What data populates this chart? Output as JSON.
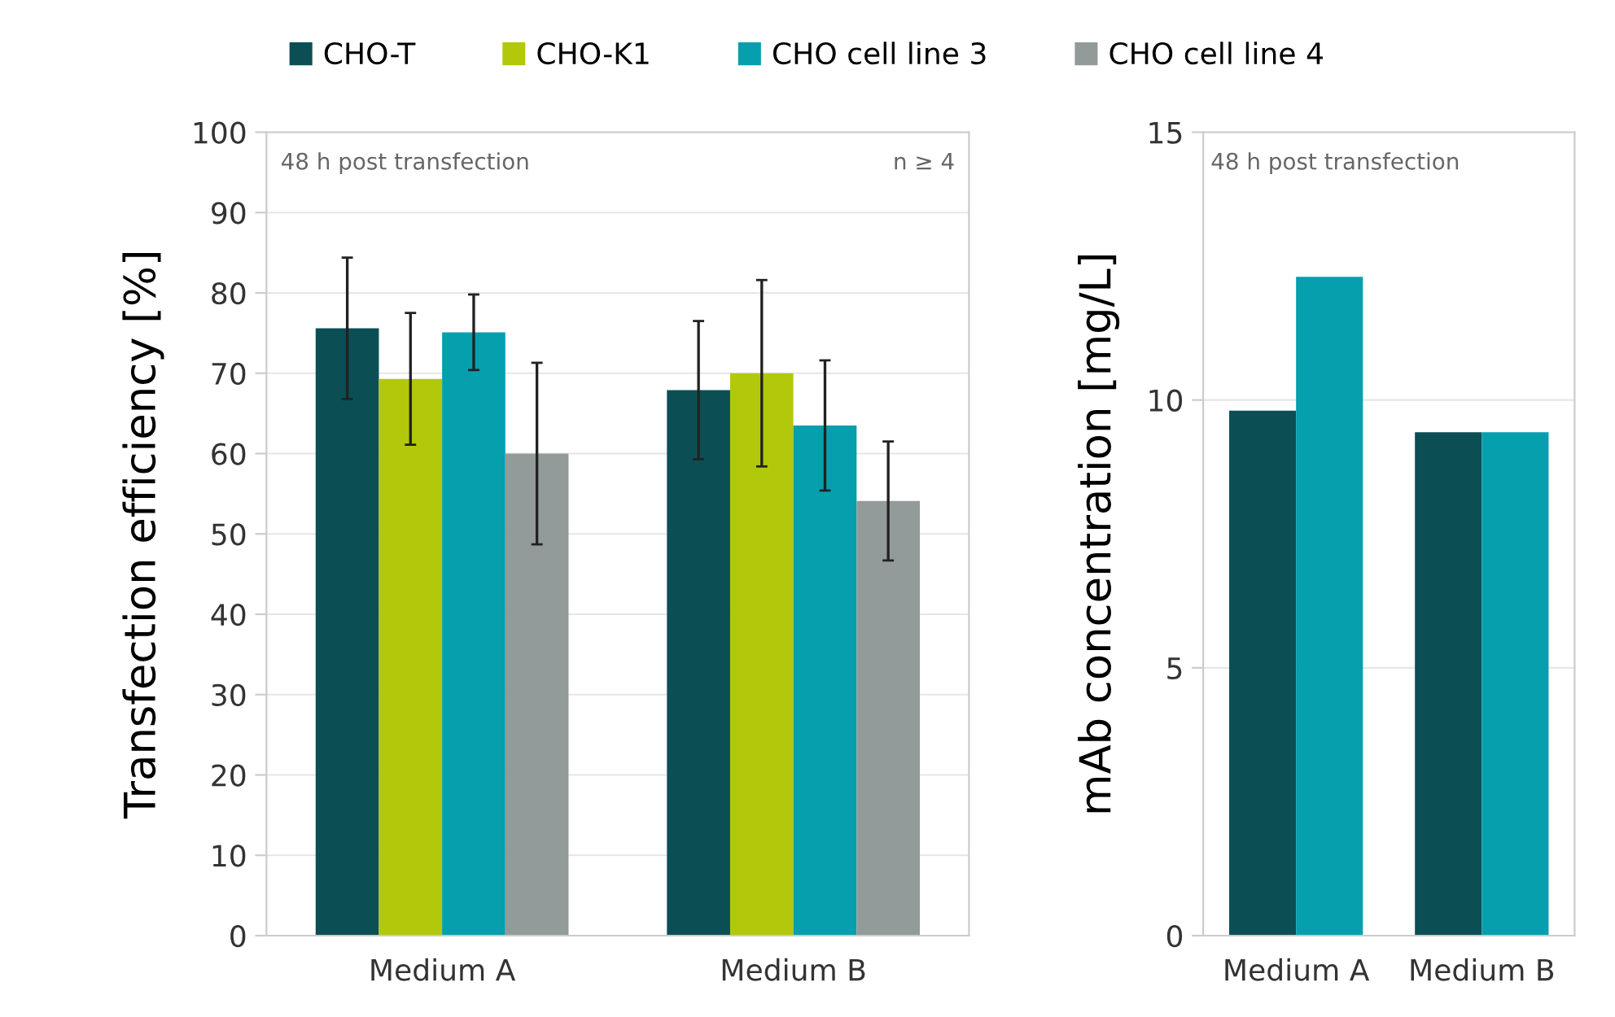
{
  "chart_data": [
    {
      "type": "bar",
      "ylabel": "Transfection efficiency [%]",
      "categories": [
        "Medium A",
        "Medium B"
      ],
      "series": [
        {
          "name": "CHO-T",
          "color": "#0b4f55",
          "values": [
            75.6,
            67.9
          ],
          "errors": [
            8.8,
            8.6
          ]
        },
        {
          "name": "CHO-K1",
          "color": "#b2c80a",
          "values": [
            69.3,
            70.0
          ],
          "errors": [
            8.2,
            11.6
          ]
        },
        {
          "name": "CHO cell line 3",
          "color": "#069fae",
          "values": [
            75.1,
            63.5
          ],
          "errors": [
            4.7,
            8.1
          ]
        },
        {
          "name": "CHO cell line 4",
          "color": "#939b9a",
          "values": [
            60.0,
            54.1
          ],
          "errors": [
            11.3,
            7.4
          ]
        }
      ],
      "ylim": [
        0,
        100
      ],
      "yticks": [
        0,
        10,
        20,
        30,
        40,
        50,
        60,
        70,
        80,
        90,
        100
      ],
      "grid": "y",
      "legend": "top",
      "annotations": [
        "48 h post transfection",
        "n ≥ 4"
      ]
    },
    {
      "type": "bar",
      "ylabel": "mAb concentration [mg/L]",
      "categories": [
        "Medium A",
        "Medium B"
      ],
      "series": [
        {
          "color": "#0b4f55",
          "values": [
            9.8,
            9.4
          ]
        },
        {
          "color": "#069fae",
          "values": [
            12.3,
            9.4
          ]
        }
      ],
      "ylim": [
        0,
        15
      ],
      "yticks": [
        0,
        5,
        10,
        15
      ],
      "grid": "y",
      "legend": false,
      "annotations": [
        "48 h post transfection"
      ]
    }
  ]
}
